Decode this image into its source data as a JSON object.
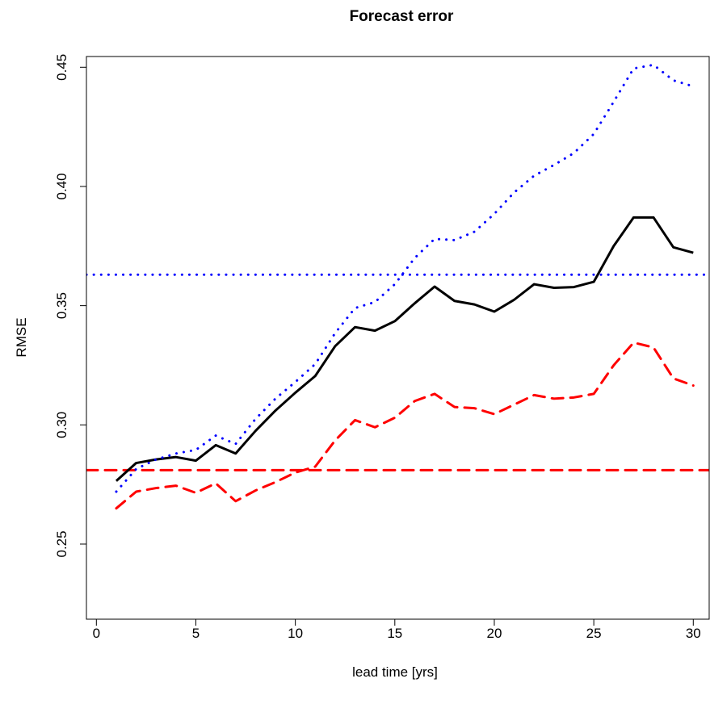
{
  "chart_data": {
    "type": "line",
    "title": "Forecast error",
    "xlabel": "lead time [yrs]",
    "ylabel": "RMSE",
    "xlim": [
      -0.5,
      30.8
    ],
    "ylim": [
      0.2185,
      0.4545
    ],
    "xticks": [
      0,
      5,
      10,
      15,
      20,
      25,
      30
    ],
    "xtick_labels": [
      "0",
      "5",
      "10",
      "15",
      "20",
      "25",
      "30"
    ],
    "yticks": [
      0.25,
      0.3,
      0.35,
      0.4,
      0.45
    ],
    "ytick_labels": [
      "0.25",
      "0.30",
      "0.35",
      "0.40",
      "0.45"
    ],
    "grid": false,
    "x": [
      1,
      2,
      3,
      4,
      5,
      6,
      7,
      8,
      9,
      10,
      11,
      12,
      13,
      14,
      15,
      16,
      17,
      18,
      19,
      20,
      21,
      22,
      23,
      24,
      25,
      26,
      27,
      28,
      29,
      30
    ],
    "series": [
      {
        "color": "#000000",
        "style": "solid",
        "values": [
          0.2765,
          0.284,
          0.2855,
          0.2865,
          0.285,
          0.2915,
          0.288,
          0.2975,
          0.306,
          0.3135,
          0.3205,
          0.333,
          0.341,
          0.3395,
          0.3435,
          0.351,
          0.358,
          0.352,
          0.3505,
          0.3475,
          0.3525,
          0.359,
          0.3575,
          0.3578,
          0.36,
          0.375,
          0.387,
          0.387,
          0.3745,
          0.3722
        ]
      },
      {
        "color": "#0000ff",
        "style": "dotted",
        "values": [
          0.272,
          0.2815,
          0.2855,
          0.288,
          0.2895,
          0.2955,
          0.292,
          0.3025,
          0.311,
          0.318,
          0.3255,
          0.3385,
          0.349,
          0.3515,
          0.359,
          0.37,
          0.378,
          0.3775,
          0.381,
          0.3885,
          0.3975,
          0.4045,
          0.409,
          0.414,
          0.422,
          0.4355,
          0.4495,
          0.451,
          0.4445,
          0.442
        ]
      },
      {
        "color": "#ff0000",
        "style": "dashed",
        "values": [
          0.265,
          0.272,
          0.2735,
          0.2745,
          0.2715,
          0.2755,
          0.268,
          0.2725,
          0.276,
          0.28,
          0.2825,
          0.2935,
          0.302,
          0.299,
          0.303,
          0.31,
          0.313,
          0.3075,
          0.307,
          0.3045,
          0.3085,
          0.3125,
          0.311,
          0.3115,
          0.313,
          0.325,
          0.3345,
          0.3325,
          0.3195,
          0.3165
        ]
      }
    ],
    "reference_lines": [
      {
        "y": 0.363,
        "color": "#0000ff",
        "style": "dotted"
      },
      {
        "y": 0.281,
        "color": "#ff0000",
        "style": "dashed"
      }
    ]
  }
}
